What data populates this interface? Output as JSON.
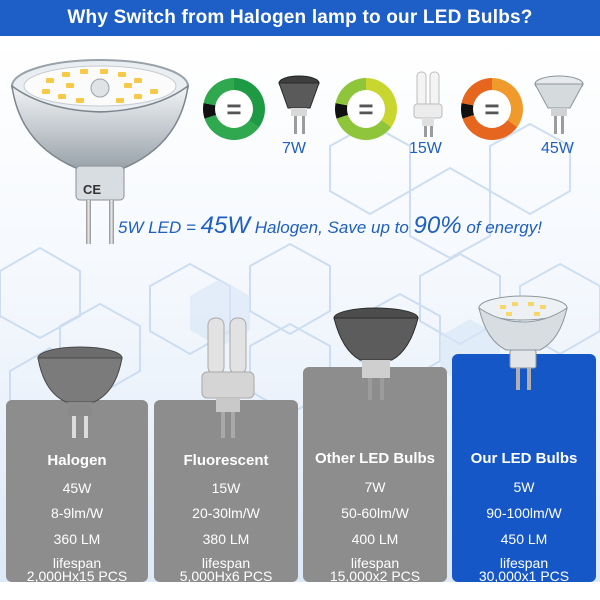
{
  "header": {
    "title": "Why Switch from Halogen lamp to our LED Bulbs?"
  },
  "hero": {
    "cert_marks": "CE"
  },
  "comparison": {
    "items": [
      {
        "watt": "7W",
        "ring_color": "#2fa84f",
        "symbol": "="
      },
      {
        "watt": "15W",
        "ring_color": "#8fc53a",
        "symbol": "="
      },
      {
        "watt": "45W",
        "ring_color": "#e6661f",
        "symbol": "="
      }
    ]
  },
  "tagline": {
    "part1": "5W LED = ",
    "part2": "45W",
    "part3": " Halogen, Save up to ",
    "part4": "90%",
    "part5": " of energy!"
  },
  "cards": [
    {
      "name": "Halogen",
      "power": "45W",
      "efficacy": "8-9lm/W",
      "lumens": "360 LM",
      "lifespan_label": "lifespan",
      "lifespan": "2,000Hx15 PCS"
    },
    {
      "name": "Fluorescent",
      "power": "15W",
      "efficacy": "20-30lm/W",
      "lumens": "380 LM",
      "lifespan_label": "lifespan",
      "lifespan": "5,000Hx6 PCS"
    },
    {
      "name": "Other LED Bulbs",
      "power": "7W",
      "efficacy": "50-60lm/W",
      "lumens": "400 LM",
      "lifespan_label": "lifespan",
      "lifespan": "15,000x2 PCS"
    },
    {
      "name": "Our LED Bulbs",
      "power": "5W",
      "efficacy": "90-100lm/W",
      "lumens": "450 LM",
      "lifespan_label": "lifespan",
      "lifespan": "30,000x1 PCS"
    }
  ],
  "colors": {
    "header_bg": "#1d5fc7",
    "accent_text": "#1f5fbf",
    "gray_card": "#8d8d8d",
    "our_card": "#1657c8"
  }
}
